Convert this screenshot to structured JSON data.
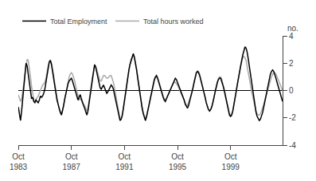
{
  "chart_data": {
    "type": "line",
    "ylabel": "no.",
    "ylim": [
      -4,
      4
    ],
    "yticks": [
      -4,
      -2,
      0,
      2,
      4
    ],
    "grid": false,
    "legend": "upper left",
    "categories": [
      "Oct\n1983",
      null,
      null,
      null,
      null,
      null,
      null,
      null,
      null,
      null,
      null,
      null,
      null,
      null,
      null,
      null,
      null,
      null,
      null,
      null,
      null,
      null,
      null,
      null,
      null,
      null,
      null,
      null,
      null,
      null,
      null,
      null,
      null,
      null,
      null,
      null,
      null,
      null,
      null,
      null,
      null,
      null,
      null,
      null,
      null,
      null,
      null,
      null,
      "Oct\n1987",
      null,
      null,
      null,
      null,
      null,
      null,
      null,
      null,
      null,
      null,
      null,
      null,
      null,
      null,
      null,
      null,
      null,
      null,
      null,
      null,
      null,
      null,
      null,
      null,
      null,
      null,
      null,
      null,
      null,
      null,
      null,
      null,
      null,
      null,
      null,
      null,
      null,
      null,
      null,
      null,
      null,
      null,
      null,
      null,
      null,
      null,
      null,
      "Oct\n1991",
      null,
      null,
      null,
      null,
      null,
      null,
      null,
      null,
      null,
      null,
      null,
      null,
      null,
      null,
      null,
      null,
      null,
      null,
      null,
      null,
      null,
      null,
      null,
      null,
      null,
      null,
      null,
      null,
      null,
      null,
      null,
      null,
      null,
      null,
      null,
      null,
      null,
      null,
      null,
      null,
      null,
      null,
      null,
      null,
      null,
      null,
      null,
      "Oct\n1995",
      null,
      null,
      null,
      null,
      null,
      null,
      null,
      null,
      null,
      null,
      null,
      null,
      null,
      null,
      null,
      null,
      null,
      null,
      null,
      null,
      null,
      null,
      null,
      null,
      null,
      null,
      null,
      null,
      null,
      null,
      null,
      null,
      null,
      null,
      null,
      null,
      null,
      null,
      null,
      null,
      null,
      null,
      null,
      null,
      null,
      null,
      null,
      "Oct\n1999",
      null,
      null,
      null,
      null,
      null,
      null,
      null,
      null,
      null,
      null,
      null,
      null,
      null,
      null,
      null,
      null,
      null,
      null,
      null,
      null,
      null,
      null,
      null,
      null,
      null,
      null,
      null,
      null,
      null,
      null,
      null,
      null,
      null,
      null,
      null,
      null,
      null,
      null,
      null,
      null,
      null,
      null,
      null,
      null,
      null,
      null,
      null
    ],
    "series": [
      {
        "name": "Total hours worked",
        "color": "#aaaaaa",
        "values": [
          -0.3,
          -0.5,
          -0.8,
          -0.6,
          -0.1,
          0.5,
          1.2,
          1.9,
          2.3,
          2.2,
          1.7,
          1.0,
          0.3,
          -0.3,
          -0.7,
          -0.8,
          -0.6,
          -0.5,
          -0.4,
          -0.2,
          0.1,
          0.3,
          0.4,
          0.5,
          0.6,
          0.9,
          1.4,
          1.8,
          2.1,
          2.2,
          2.0,
          1.6,
          1.1,
          0.5,
          -0.1,
          -0.6,
          -1.0,
          -1.4,
          -1.6,
          -1.7,
          -1.5,
          -1.1,
          -0.6,
          -0.1,
          0.3,
          0.7,
          1.0,
          1.2,
          1.3,
          1.2,
          1.0,
          0.7,
          0.3,
          -0.1,
          -0.5,
          -0.7,
          -0.6,
          -0.7,
          -0.9,
          -1.0,
          -1.1,
          -1.3,
          -1.5,
          -1.3,
          -0.8,
          -0.2,
          0.4,
          1.0,
          1.5,
          1.8,
          1.8,
          1.5,
          1.2,
          0.9,
          0.7,
          0.7,
          0.9,
          1.1,
          1.1,
          1.0,
          0.9,
          0.9,
          1.0,
          1.1,
          1.1,
          0.9,
          0.6,
          0.2,
          -0.3,
          -0.8,
          -1.3,
          -1.8,
          -2.1,
          -2.1,
          -1.9,
          -1.4,
          -0.9,
          -0.3,
          0.3,
          0.9,
          1.5,
          1.9,
          2.3,
          2.5,
          2.6,
          2.5,
          2.1,
          1.6,
          1.0,
          0.4,
          -0.2,
          -0.7,
          -1.2,
          -1.6,
          -1.9,
          -2.1,
          -1.9,
          -1.6,
          -1.2,
          -0.8,
          -0.4,
          0.0,
          0.4,
          0.7,
          0.9,
          1.0,
          0.9,
          0.7,
          0.4,
          0.1,
          -0.2,
          -0.4,
          -0.6,
          -0.7,
          -0.6,
          -0.4,
          -0.2,
          0.0,
          0.2,
          0.4,
          0.5,
          0.6,
          0.6,
          0.5,
          0.4,
          0.2,
          0.0,
          -0.2,
          -0.4,
          -0.6,
          -0.8,
          -1.0,
          -1.1,
          -1.1,
          -0.9,
          -0.7,
          -0.4,
          -0.1,
          0.3,
          0.7,
          1.0,
          1.3,
          1.4,
          1.4,
          1.2,
          0.9,
          0.6,
          0.2,
          -0.2,
          -0.6,
          -0.9,
          -1.2,
          -1.4,
          -1.5,
          -1.4,
          -1.2,
          -0.9,
          -0.5,
          -0.1,
          0.3,
          0.7,
          0.9,
          1.0,
          1.0,
          0.8,
          0.5,
          0.2,
          -0.2,
          -0.6,
          -1.0,
          -1.4,
          -1.7,
          -1.8,
          -1.7,
          -1.5,
          -1.1,
          -0.6,
          -0.1,
          0.4,
          0.9,
          1.4,
          1.8,
          2.1,
          2.4,
          2.5,
          2.4,
          2.2,
          1.8,
          1.4,
          0.9,
          0.4,
          -0.1,
          -0.5,
          -0.9,
          -1.2,
          -1.5,
          -1.7,
          -1.8,
          -1.8,
          -1.7,
          -1.5,
          -1.3,
          -1.0,
          -0.7,
          -0.4,
          -0.1,
          0.2,
          0.5,
          0.8,
          1.0,
          1.2,
          1.3,
          1.3,
          1.2,
          1.0,
          0.8,
          0.6,
          0.4,
          0.2,
          0.0
        ]
      },
      {
        "name": "Total Employment",
        "color": "#000000",
        "values": [
          -1.2,
          -1.8,
          -2.2,
          -1.5,
          -0.5,
          0.5,
          1.4,
          2.0,
          1.8,
          1.2,
          0.4,
          -0.3,
          -0.6,
          -0.5,
          -0.8,
          -0.9,
          -0.7,
          -0.8,
          -0.9,
          -0.7,
          -0.4,
          -0.5,
          -0.4,
          -0.2,
          0.1,
          0.6,
          1.2,
          1.8,
          2.1,
          2.2,
          1.9,
          1.4,
          0.8,
          0.2,
          -0.3,
          -0.7,
          -1.0,
          -1.4,
          -1.6,
          -1.8,
          -1.5,
          -1.1,
          -0.6,
          -0.2,
          0.2,
          0.5,
          0.7,
          0.8,
          0.9,
          0.7,
          0.4,
          0.1,
          -0.2,
          -0.5,
          -0.7,
          -0.5,
          -0.3,
          -0.6,
          -0.9,
          -1.1,
          -1.3,
          -1.6,
          -1.8,
          -1.5,
          -0.9,
          -0.3,
          0.4,
          1.0,
          1.6,
          1.9,
          1.7,
          1.3,
          0.9,
          0.5,
          0.2,
          0.1,
          0.3,
          0.4,
          0.2,
          0.0,
          -0.2,
          -0.1,
          0.1,
          0.3,
          0.4,
          0.3,
          0.1,
          -0.3,
          -0.7,
          -1.1,
          -1.5,
          -1.9,
          -2.2,
          -2.1,
          -1.8,
          -1.3,
          -0.7,
          -0.1,
          0.5,
          1.0,
          1.5,
          1.9,
          2.2,
          2.5,
          2.7,
          2.4,
          2.0,
          1.5,
          0.9,
          0.3,
          -0.3,
          -0.8,
          -1.3,
          -1.7,
          -2.0,
          -2.2,
          -1.9,
          -1.5,
          -1.1,
          -0.7,
          -0.3,
          0.1,
          0.5,
          0.8,
          1.0,
          1.1,
          0.9,
          0.6,
          0.3,
          0.0,
          -0.3,
          -0.5,
          -0.7,
          -0.8,
          -0.6,
          -0.4,
          -0.2,
          0.0,
          0.2,
          0.4,
          0.6,
          0.8,
          0.9,
          0.8,
          0.6,
          0.4,
          0.2,
          0.0,
          -0.2,
          -0.4,
          -0.7,
          -1.0,
          -1.2,
          -1.3,
          -1.1,
          -0.8,
          -0.5,
          -0.2,
          0.2,
          0.6,
          1.0,
          1.3,
          1.4,
          1.3,
          1.1,
          0.8,
          0.5,
          0.2,
          -0.2,
          -0.5,
          -0.9,
          -1.2,
          -1.4,
          -1.5,
          -1.4,
          -1.2,
          -0.9,
          -0.5,
          -0.1,
          0.3,
          0.6,
          0.8,
          0.9,
          0.9,
          0.7,
          0.4,
          0.1,
          -0.3,
          -0.7,
          -1.1,
          -1.5,
          -1.8,
          -1.9,
          -1.8,
          -1.5,
          -1.1,
          -0.6,
          -0.1,
          0.4,
          0.9,
          1.4,
          1.8,
          2.2,
          2.6,
          3.0,
          3.2,
          3.1,
          2.8,
          2.3,
          1.7,
          1.1,
          0.5,
          -0.1,
          -0.7,
          -1.2,
          -1.6,
          -1.9,
          -2.1,
          -2.2,
          -2.1,
          -1.9,
          -1.6,
          -1.2,
          -0.8,
          -0.4,
          0.1,
          0.5,
          0.9,
          1.2,
          1.4,
          1.5,
          1.4,
          1.2,
          0.9,
          0.6,
          0.3,
          0.0,
          -0.3,
          -0.6,
          -0.8
        ]
      }
    ]
  }
}
